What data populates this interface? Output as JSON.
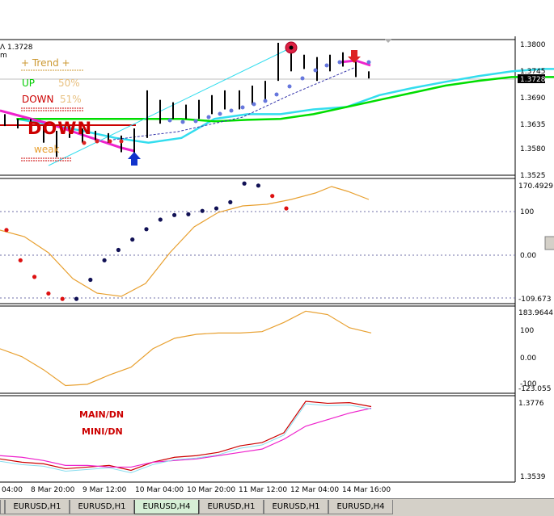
{
  "header": {
    "price_info": "Λ 1.3728",
    "timeframe_hint": "m"
  },
  "indicator_panel": {
    "trend_label": "+   Trend   +",
    "up_label": "UP",
    "up_value": "50%",
    "down_label": "DOWN",
    "down_value": "51%",
    "big_status": "DOWN",
    "strength_label": "weak"
  },
  "price_axis": {
    "labels": [
      "1.3800",
      "1.3745",
      "1.3690",
      "1.3635",
      "1.3580",
      "1.3525"
    ],
    "current_price": "1.3728"
  },
  "panel2_axis": {
    "labels": [
      "170.4929",
      "100",
      "0.00",
      "-109.673"
    ]
  },
  "panel3_axis": {
    "labels": [
      "183.9644",
      "100",
      "0.00",
      "-100",
      "-123.055"
    ]
  },
  "panel4": {
    "axis_labels": [
      "1.3776",
      "1.3539"
    ],
    "main_label": "MAIN/DN",
    "mini_label": "MINI/DN"
  },
  "time_axis": [
    "04:00",
    "8 Mar 20:00",
    "9 Mar 12:00",
    "10 Mar 04:00",
    "10 Mar 20:00",
    "11 Mar 12:00",
    "12 Mar 04:00",
    "14 Mar 16:00"
  ],
  "tabs": [
    "EURUSD,H1",
    "EURUSD,H1",
    "EURUSD,H4",
    "EURUSD,H1",
    "EURUSD,H1",
    "EURUSD,H4"
  ],
  "active_tab_index": 2,
  "colors": {
    "up": "#00dd00",
    "down": "#cc0000",
    "cyan": "#33ddee",
    "magenta": "#ee22cc",
    "orange": "#e8a030",
    "trend": "#cc9933",
    "dark_blue": "#000066",
    "blue_arrow": "#0033cc"
  },
  "chart_data": [
    {
      "type": "line",
      "title": "EURUSD,H4",
      "ylim": [
        1.3525,
        1.38
      ],
      "series": [
        {
          "values": [
            1.364,
            1.3628,
            1.3615,
            1.36,
            1.359,
            1.36,
            1.364,
            1.365,
            1.365,
            1.366,
            1.3665,
            1.369,
            1.3705,
            1.3718,
            1.373,
            1.374,
            1.3745,
            1.3745
          ]
        },
        {
          "values": [
            1.364,
            1.364,
            1.364,
            1.364,
            1.364,
            1.364,
            1.3635,
            1.3638,
            1.364,
            1.365,
            1.3665,
            1.368,
            1.3695,
            1.371,
            1.372,
            1.3728,
            1.3728,
            1.3728
          ]
        }
      ]
    },
    {
      "type": "scatter",
      "ylim": [
        -109.673,
        170.4929
      ],
      "series": [
        {
          "values": [
            58,
            -15,
            -55,
            -95,
            -108,
            -108,
            -62,
            -15,
            10,
            35,
            60,
            83,
            94,
            96,
            104,
            110,
            125,
            170,
            165,
            140,
            110
          ]
        }
      ]
    },
    {
      "type": "line",
      "ylim": [
        -123.055,
        183.9644
      ],
      "series": [
        {
          "values": [
            40,
            10,
            -40,
            -100,
            -95,
            -60,
            -30,
            40,
            80,
            95,
            100,
            100,
            105,
            140,
            183,
            170,
            120,
            100
          ]
        }
      ]
    },
    {
      "type": "line",
      "ylim": [
        1.3539,
        1.3776
      ],
      "series": [
        {
          "values": [
            1.36,
            1.359,
            1.3585,
            1.357,
            1.3575,
            1.358,
            1.3565,
            1.359,
            1.3605,
            1.361,
            1.362,
            1.364,
            1.365,
            1.368,
            1.3776,
            1.377,
            1.3772,
            1.376
          ]
        },
        {
          "values": [
            1.361,
            1.3605,
            1.3595,
            1.358,
            1.358,
            1.3575,
            1.3575,
            1.359,
            1.3595,
            1.36,
            1.361,
            1.362,
            1.363,
            1.366,
            1.37,
            1.372,
            1.374,
            1.3755
          ]
        }
      ]
    }
  ]
}
